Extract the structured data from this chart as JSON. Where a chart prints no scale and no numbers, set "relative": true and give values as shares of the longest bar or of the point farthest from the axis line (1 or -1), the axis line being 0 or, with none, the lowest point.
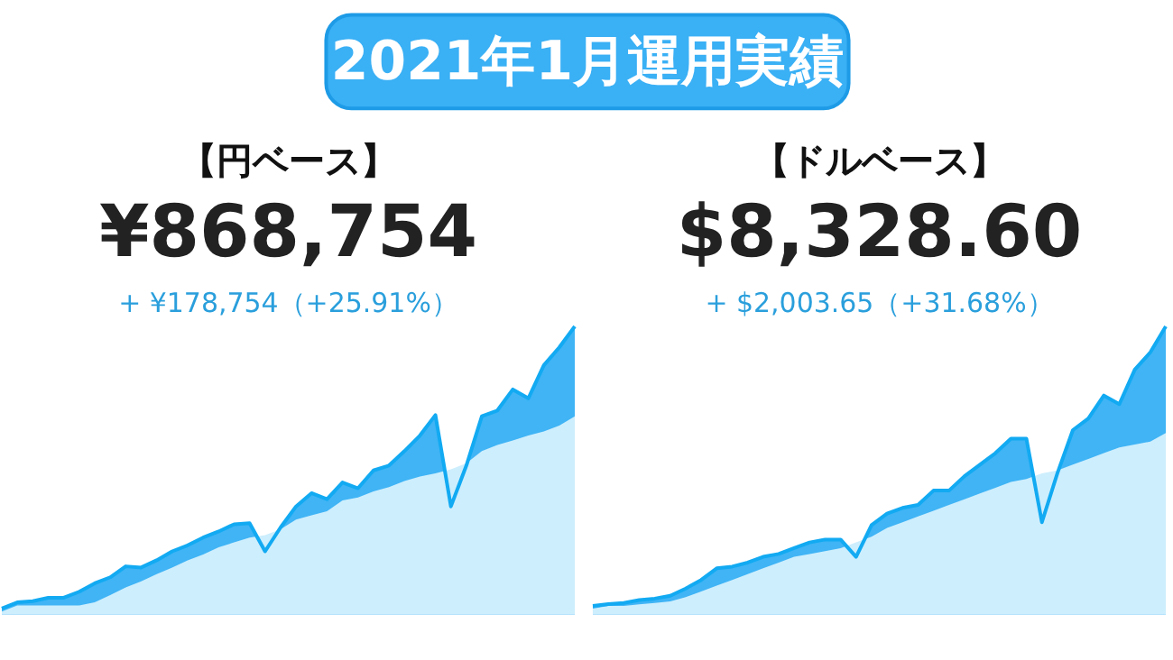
{
  "chart_data": [
    {
      "type": "other",
      "title": "2021年1月運用実績"
    },
    {
      "type": "area",
      "title": "【円ベース】",
      "annotations": [
        "¥868,754",
        "+ ¥178,754（+25.91%）"
      ],
      "relative": true,
      "categories": [
        null,
        null,
        null,
        null,
        null,
        null,
        null,
        null,
        null,
        null,
        null,
        null,
        null,
        null,
        null,
        null,
        null,
        null,
        null,
        null,
        null,
        null,
        null,
        null,
        null,
        null,
        null,
        null,
        null,
        null,
        null,
        null,
        null,
        null,
        null,
        null,
        null,
        null
      ],
      "series": [
        {
          "color": "#40b4f5",
          "values": [
            0.021,
            0.042,
            0.046,
            0.058,
            0.058,
            0.079,
            0.108,
            0.129,
            0.167,
            0.163,
            0.188,
            0.219,
            0.24,
            0.267,
            0.288,
            0.313,
            0.317,
            0.219,
            0.302,
            0.375,
            0.421,
            0.4,
            0.458,
            0.438,
            0.5,
            0.517,
            0.567,
            0.621,
            0.692,
            0.375,
            0.517,
            0.688,
            0.708,
            0.781,
            0.75,
            0.865,
            0.927,
            1
          ]
        },
        {
          "color": "#cdeefd",
          "values": [
            0.01,
            0.031,
            0.031,
            0.031,
            0.031,
            0.031,
            0.042,
            0.067,
            0.094,
            0.115,
            0.14,
            0.163,
            0.188,
            0.208,
            0.233,
            0.25,
            0.267,
            0.275,
            0.296,
            0.329,
            0.344,
            0.358,
            0.396,
            0.406,
            0.427,
            0.442,
            0.463,
            0.479,
            0.49,
            0.504,
            0.525,
            0.567,
            0.588,
            0.604,
            0.621,
            0.635,
            0.656,
            0.688
          ]
        }
      ]
    },
    {
      "type": "area",
      "title": "【ドルベース】",
      "annotations": [
        "$8,328.60",
        "+ $2,003.65（+31.68%）"
      ],
      "relative": true,
      "categories": [
        null,
        null,
        null,
        null,
        null,
        null,
        null,
        null,
        null,
        null,
        null,
        null,
        null,
        null,
        null,
        null,
        null,
        null,
        null,
        null,
        null,
        null,
        null,
        null,
        null,
        null,
        null,
        null,
        null,
        null,
        null,
        null,
        null,
        null,
        null,
        null,
        null,
        null
      ],
      "series": [
        {
          "color": "#40b4f5",
          "values": [
            0.03,
            0.036,
            0.04,
            0.05,
            0.055,
            0.065,
            0.09,
            0.12,
            0.16,
            0.166,
            0.18,
            0.2,
            0.21,
            0.23,
            0.25,
            0.26,
            0.26,
            0.2,
            0.31,
            0.35,
            0.37,
            0.38,
            0.43,
            0.43,
            0.48,
            0.52,
            0.56,
            0.61,
            0.61,
            0.32,
            0.49,
            0.64,
            0.68,
            0.76,
            0.73,
            0.85,
            0.91,
            1
          ]
        },
        {
          "color": "#cdeefd",
          "values": [
            0.02,
            0.03,
            0.03,
            0.035,
            0.04,
            0.045,
            0.06,
            0.08,
            0.1,
            0.12,
            0.14,
            0.16,
            0.18,
            0.2,
            0.21,
            0.22,
            0.23,
            0.25,
            0.27,
            0.3,
            0.32,
            0.34,
            0.36,
            0.38,
            0.4,
            0.42,
            0.44,
            0.46,
            0.47,
            0.49,
            0.5,
            0.52,
            0.54,
            0.56,
            0.58,
            0.59,
            0.6,
            0.63
          ]
        }
      ]
    }
  ]
}
